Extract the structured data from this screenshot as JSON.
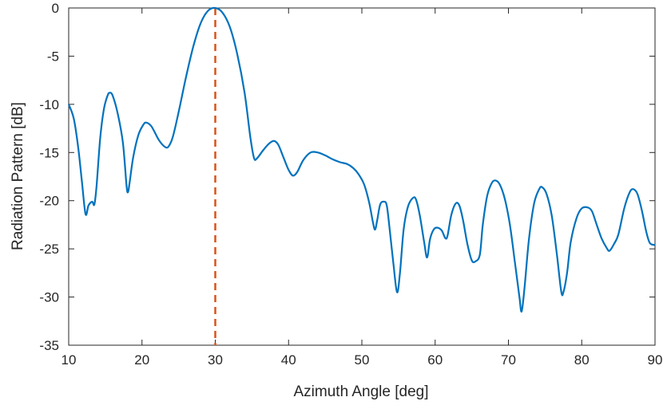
{
  "chart_data": {
    "type": "line",
    "title": "",
    "xlabel": "Azimuth Angle [deg]",
    "ylabel": "Radiation Pattern [dB]",
    "xlim": [
      10,
      90
    ],
    "ylim": [
      -35,
      0
    ],
    "xticks": [
      10,
      20,
      30,
      40,
      50,
      60,
      70,
      80,
      90
    ],
    "yticks": [
      0,
      -5,
      -10,
      -15,
      -20,
      -25,
      -30,
      -35
    ],
    "grid": false,
    "legend": "none",
    "series": [
      {
        "color": "#0072BD",
        "style": "solid",
        "points": [
          [
            10,
            -10
          ],
          [
            10.7,
            -11.5
          ],
          [
            11.3,
            -14.5
          ],
          [
            11.8,
            -18
          ],
          [
            12.3,
            -21.4
          ],
          [
            12.7,
            -20.5
          ],
          [
            13.2,
            -20.1
          ],
          [
            13.5,
            -20.4
          ],
          [
            13.8,
            -18.5
          ],
          [
            14.3,
            -13.5
          ],
          [
            14.8,
            -10.5
          ],
          [
            15.3,
            -9.1
          ],
          [
            15.6,
            -8.8
          ],
          [
            16.0,
            -9.1
          ],
          [
            16.7,
            -11
          ],
          [
            17.4,
            -14
          ],
          [
            17.9,
            -18.5
          ],
          [
            18.1,
            -19.1
          ],
          [
            18.3,
            -18.2
          ],
          [
            18.8,
            -15.5
          ],
          [
            19.5,
            -13.2
          ],
          [
            20.2,
            -12.1
          ],
          [
            20.6,
            -11.9
          ],
          [
            21.3,
            -12.3
          ],
          [
            22.3,
            -13.7
          ],
          [
            23.1,
            -14.4
          ],
          [
            23.6,
            -14.4
          ],
          [
            24.2,
            -13.4
          ],
          [
            25.0,
            -10.8
          ],
          [
            26.0,
            -7.2
          ],
          [
            27.0,
            -4.0
          ],
          [
            28.0,
            -1.6
          ],
          [
            29.0,
            -0.3
          ],
          [
            30.0,
            0
          ],
          [
            31.0,
            -0.5
          ],
          [
            32.0,
            -2.0
          ],
          [
            33.0,
            -4.8
          ],
          [
            34.0,
            -8.8
          ],
          [
            34.8,
            -13.5
          ],
          [
            35.3,
            -15.6
          ],
          [
            35.7,
            -15.6
          ],
          [
            36.5,
            -14.8
          ],
          [
            37.3,
            -14.1
          ],
          [
            38.0,
            -13.8
          ],
          [
            38.6,
            -14.2
          ],
          [
            39.3,
            -15.5
          ],
          [
            40.0,
            -16.8
          ],
          [
            40.6,
            -17.4
          ],
          [
            41.2,
            -17.0
          ],
          [
            42.0,
            -15.8
          ],
          [
            43.0,
            -15.0
          ],
          [
            44.0,
            -15.0
          ],
          [
            45.0,
            -15.3
          ],
          [
            46.0,
            -15.7
          ],
          [
            47.0,
            -16.0
          ],
          [
            48.0,
            -16.2
          ],
          [
            48.8,
            -16.6
          ],
          [
            49.5,
            -17.2
          ],
          [
            50.3,
            -18.3
          ],
          [
            51.0,
            -20.2
          ],
          [
            51.5,
            -22.2
          ],
          [
            51.8,
            -23.0
          ],
          [
            52.1,
            -22.0
          ],
          [
            52.5,
            -20.4
          ],
          [
            53.0,
            -20.1
          ],
          [
            53.4,
            -20.5
          ],
          [
            53.8,
            -23.0
          ],
          [
            54.3,
            -26.5
          ],
          [
            54.8,
            -29.5
          ],
          [
            55.2,
            -27.5
          ],
          [
            55.7,
            -23.0
          ],
          [
            56.3,
            -20.6
          ],
          [
            57.0,
            -19.7
          ],
          [
            57.4,
            -19.9
          ],
          [
            57.9,
            -21.5
          ],
          [
            58.5,
            -24.3
          ],
          [
            58.9,
            -25.9
          ],
          [
            59.3,
            -24.0
          ],
          [
            59.8,
            -23.0
          ],
          [
            60.3,
            -22.8
          ],
          [
            60.9,
            -23.1
          ],
          [
            61.4,
            -23.9
          ],
          [
            61.7,
            -23.6
          ],
          [
            62.2,
            -21.5
          ],
          [
            62.8,
            -20.3
          ],
          [
            63.3,
            -20.5
          ],
          [
            63.8,
            -22.0
          ],
          [
            64.4,
            -24.5
          ],
          [
            65.0,
            -26.2
          ],
          [
            65.5,
            -26.3
          ],
          [
            66.1,
            -25.6
          ],
          [
            66.5,
            -22.5
          ],
          [
            67.1,
            -19.5
          ],
          [
            67.7,
            -18.2
          ],
          [
            68.2,
            -17.9
          ],
          [
            68.8,
            -18.3
          ],
          [
            69.5,
            -19.8
          ],
          [
            70.2,
            -22.5
          ],
          [
            70.9,
            -26.5
          ],
          [
            71.5,
            -30.0
          ],
          [
            71.8,
            -31.5
          ],
          [
            72.2,
            -29.0
          ],
          [
            72.8,
            -24.0
          ],
          [
            73.5,
            -20.3
          ],
          [
            74.2,
            -18.8
          ],
          [
            74.6,
            -18.6
          ],
          [
            75.2,
            -19.3
          ],
          [
            75.9,
            -21.5
          ],
          [
            76.6,
            -25.5
          ],
          [
            77.2,
            -29.4
          ],
          [
            77.5,
            -29.5
          ],
          [
            78.0,
            -27.5
          ],
          [
            78.5,
            -24.3
          ],
          [
            79.3,
            -21.8
          ],
          [
            80.0,
            -20.8
          ],
          [
            80.8,
            -20.7
          ],
          [
            81.4,
            -21.1
          ],
          [
            82.0,
            -22.4
          ],
          [
            82.7,
            -23.9
          ],
          [
            83.4,
            -24.9
          ],
          [
            83.8,
            -25.2
          ],
          [
            84.4,
            -24.5
          ],
          [
            85.0,
            -23.5
          ],
          [
            85.8,
            -20.8
          ],
          [
            86.5,
            -19.2
          ],
          [
            87.0,
            -18.8
          ],
          [
            87.6,
            -19.3
          ],
          [
            88.2,
            -21.0
          ],
          [
            88.8,
            -23.2
          ],
          [
            89.3,
            -24.4
          ],
          [
            90.0,
            -24.6
          ]
        ]
      }
    ],
    "reference_line": {
      "x": 30,
      "color": "#D95319",
      "style": "dashed"
    }
  }
}
